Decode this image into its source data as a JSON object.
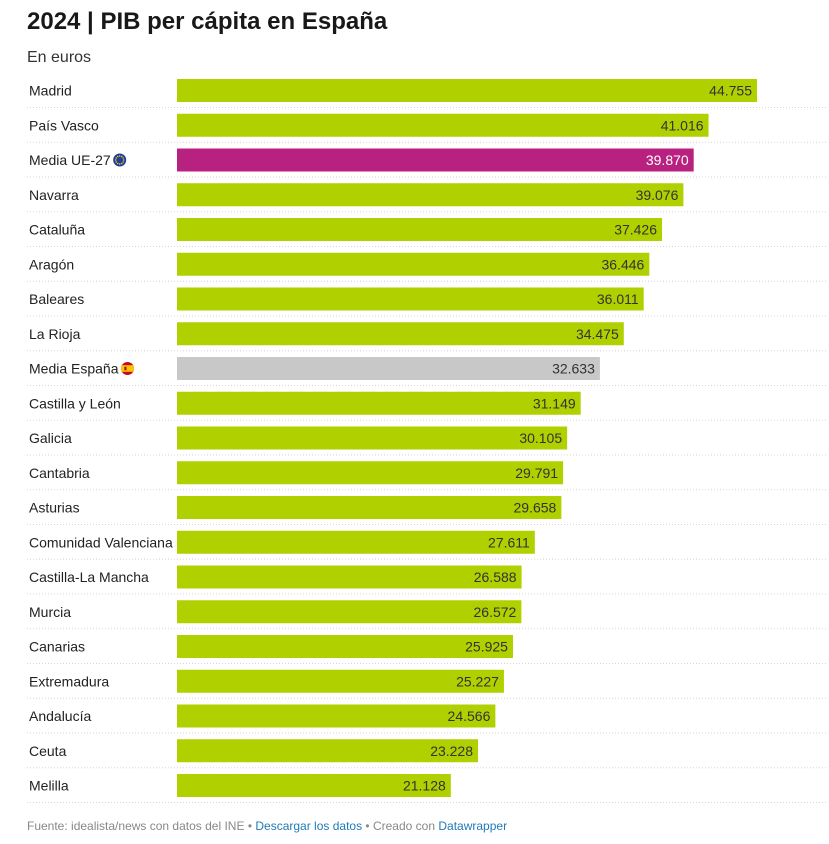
{
  "title": "2024 | PIB per cápita en España",
  "subtitle": "En euros",
  "colors": {
    "region": "#b0d000",
    "eu": "#b8217f",
    "spain": "#c8c8c8",
    "label_dark": "#333333",
    "label_light": "#ffffff",
    "divider": "#d6d6d6"
  },
  "chart_data": {
    "type": "bar",
    "orientation": "horizontal",
    "title": "2024 | PIB per cápita en España",
    "subtitle": "En euros",
    "xlabel": "",
    "ylabel": "",
    "xlim": [
      0,
      50000
    ],
    "grid": false,
    "categories": [
      "Madrid",
      "País Vasco",
      "Media UE-27",
      "Navarra",
      "Cataluña",
      "Aragón",
      "Baleares",
      "La Rioja",
      "Media España",
      "Castilla y León",
      "Galicia",
      "Cantabria",
      "Asturias",
      "Comunidad Valenciana",
      "Castilla-La Mancha",
      "Murcia",
      "Canarias",
      "Extremadura",
      "Andalucía",
      "Ceuta",
      "Melilla"
    ],
    "values": [
      44755,
      41016,
      39870,
      39076,
      37426,
      36446,
      36011,
      34475,
      32633,
      31149,
      30105,
      29791,
      29658,
      27611,
      26588,
      26572,
      25925,
      25227,
      24566,
      23228,
      21128
    ],
    "value_labels": [
      "44.755",
      "41.016",
      "39.870",
      "39.076",
      "37.426",
      "36.446",
      "36.011",
      "34.475",
      "32.633",
      "31.149",
      "30.105",
      "29.791",
      "29.658",
      "27.611",
      "26.588",
      "26.572",
      "25.925",
      "25.227",
      "24.566",
      "23.228",
      "21.128"
    ],
    "highlight": [
      "region",
      "region",
      "eu",
      "region",
      "region",
      "region",
      "region",
      "region",
      "spain",
      "region",
      "region",
      "region",
      "region",
      "region",
      "region",
      "region",
      "region",
      "region",
      "region",
      "region",
      "region"
    ],
    "flags": [
      "",
      "",
      "eu-flag",
      "",
      "",
      "",
      "",
      "",
      "spain-flag",
      "",
      "",
      "",
      "",
      "",
      "",
      "",
      "",
      "",
      "",
      "",
      ""
    ]
  },
  "footer": {
    "source": "Fuente: idealista/news con datos del INE",
    "separator": "•",
    "download": "Descargar los datos",
    "created": "Creado con",
    "tool": "Datawrapper"
  }
}
